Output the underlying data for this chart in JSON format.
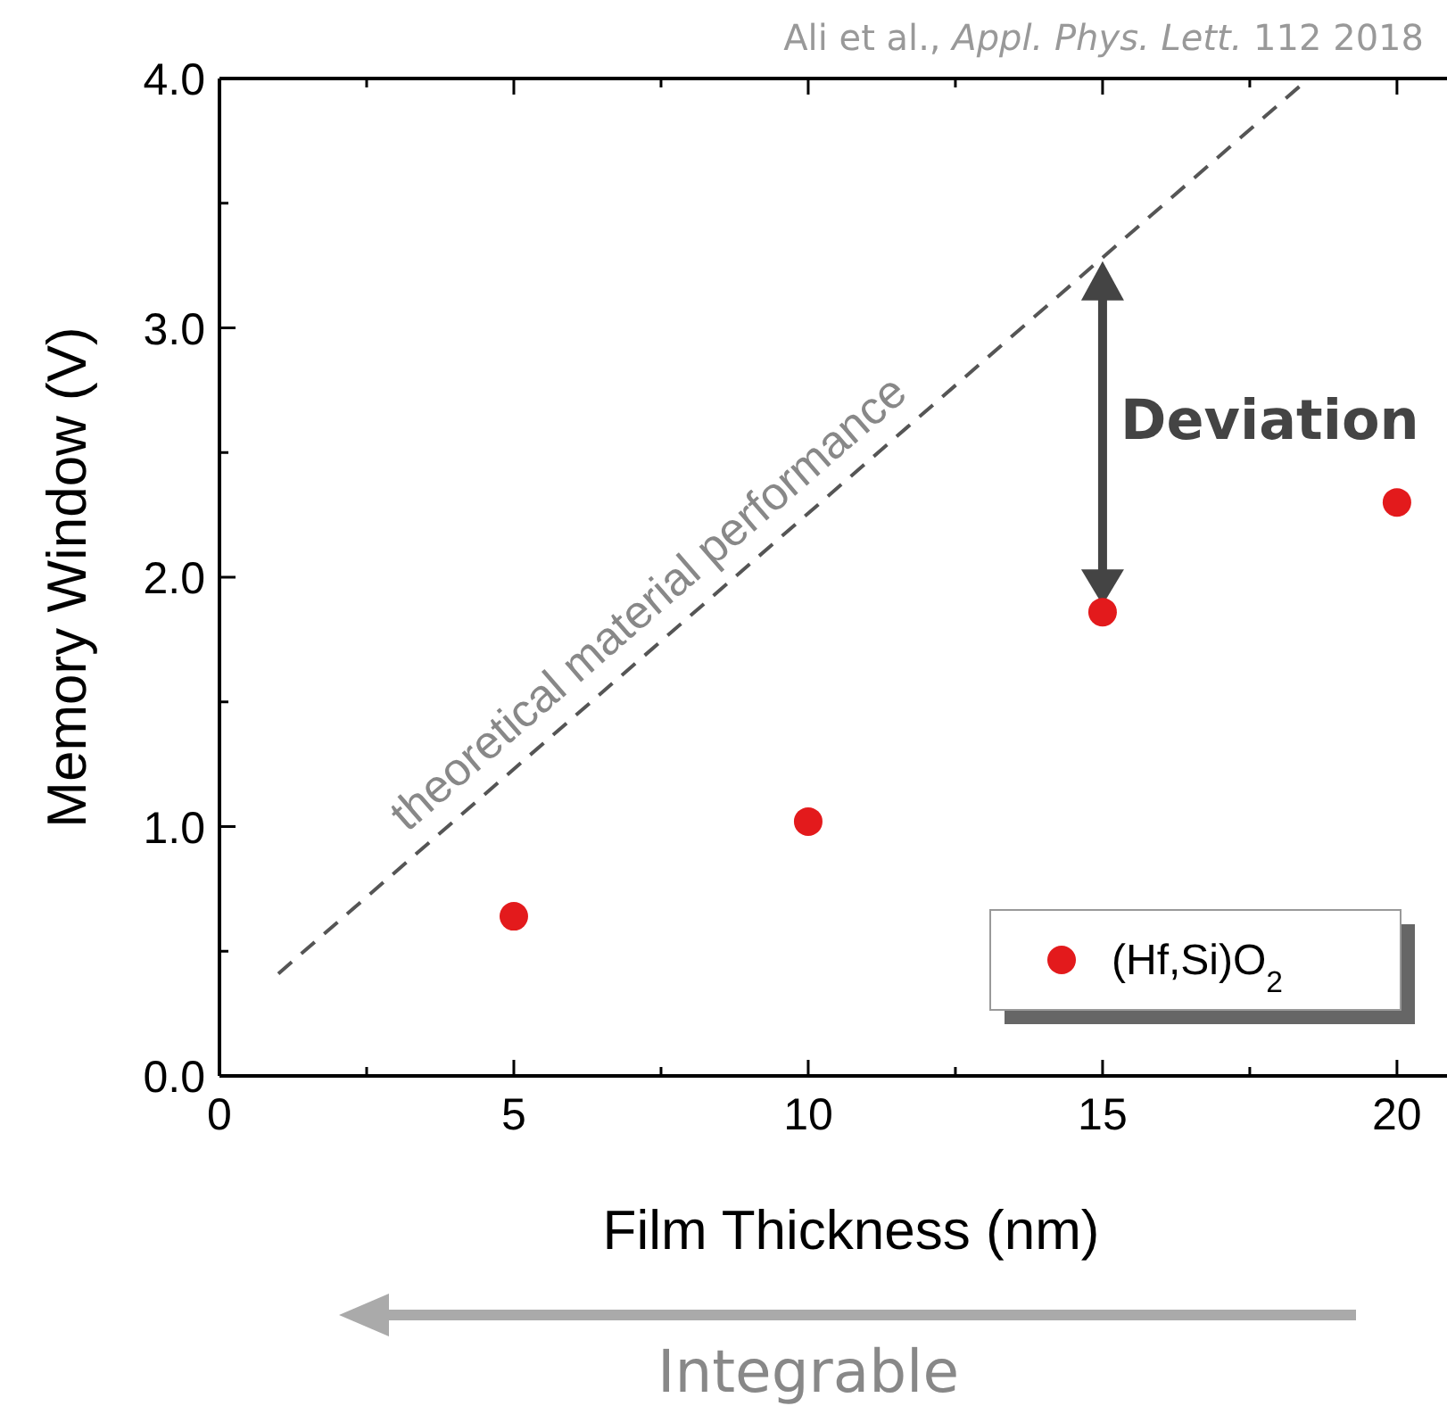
{
  "chart_data": {
    "type": "scatter",
    "xlabel": "Film Thickness (nm)",
    "ylabel": "Memory Window (V)",
    "xlim": [
      0,
      20.85
    ],
    "xticks": [
      0,
      {
        "value": 2.5,
        "label": null
      },
      5,
      {
        "value": 7.5,
        "label": null
      },
      10,
      {
        "value": 12.5,
        "label": null
      },
      15,
      {
        "value": 17.5,
        "label": null
      },
      20
    ],
    "ylim": [
      0,
      4
    ],
    "yticks": [
      {
        "value": 0,
        "label": "0.0"
      },
      {
        "value": 0.5,
        "label": null
      },
      {
        "value": 1,
        "label": "1.0"
      },
      {
        "value": 1.5,
        "label": null
      },
      {
        "value": 2,
        "label": "2.0"
      },
      {
        "value": 2.5,
        "label": null
      },
      {
        "value": 3,
        "label": "3.0"
      },
      {
        "value": 3.5,
        "label": null
      },
      {
        "value": 4,
        "label": "4.0"
      }
    ],
    "series": [
      {
        "name": "(Hf,Si)O$_{2}$",
        "color": "#e31a1c",
        "x": [
          5,
          10,
          15,
          20
        ],
        "values": [
          0.64,
          1.02,
          1.86,
          2.3
        ],
        "marker": "circle"
      },
      {
        "type": "line",
        "color": "#555555",
        "x": [
          1,
          18.5
        ],
        "values": [
          0.41,
          4.0
        ],
        "line_style": "dashed"
      }
    ],
    "legend": "bottom right",
    "grid": false,
    "annotations": [
      {
        "text": "theoretical material performance",
        "x": 8,
        "y": 1.85
      },
      "Deviation",
      "Integrable",
      "Ali et al., Appl. Phys. Lett. 112 2018"
    ]
  }
}
